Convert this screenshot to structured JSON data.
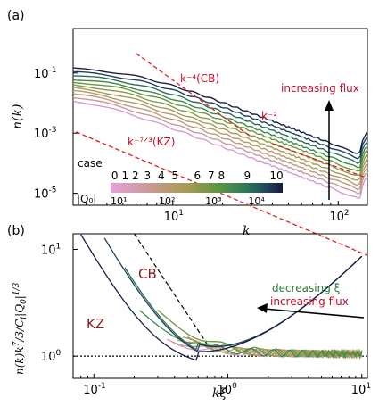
{
  "chart_data": [
    {
      "panel_label": "(a)",
      "type": "line",
      "scale": "log-log",
      "xlabel": "k",
      "ylabel": "n(k)",
      "xlim": [
        2.5,
        150
      ],
      "ylim": [
        4e-06,
        3
      ],
      "xticks": [
        {
          "v": 10,
          "label": "10^1"
        },
        {
          "v": 100,
          "label": "10^2"
        }
      ],
      "yticks": [
        {
          "v": 0.1,
          "label": "10^-1"
        },
        {
          "v": 0.001,
          "label": "10^-3"
        },
        {
          "v": 1e-05,
          "label": "10^-5"
        }
      ],
      "series_colors": [
        "#d89ad0",
        "#c99898",
        "#c0997f",
        "#b39a6a",
        "#a89a56",
        "#8a9a48",
        "#6a9840",
        "#3f8a4a",
        "#2a6e5a",
        "#20405a",
        "#1a1f48"
      ],
      "series": [
        {
          "amp": 0.0015,
          "lowdip": 0.0,
          "late": 0.0
        },
        {
          "amp": 0.0022,
          "lowdip": 0.0,
          "late": 0.0
        },
        {
          "amp": 0.0031,
          "lowdip": 0.0,
          "late": 0.0
        },
        {
          "amp": 0.0043,
          "lowdip": 0.0,
          "late": 0.0
        },
        {
          "amp": 0.006,
          "lowdip": 0.0,
          "late": 0.0
        },
        {
          "amp": 0.0084,
          "lowdip": 0.0,
          "late": 0.0
        },
        {
          "amp": 0.0118,
          "lowdip": 0.0,
          "late": 0.0
        },
        {
          "amp": 0.016,
          "lowdip": 0.0,
          "late": 0.0
        },
        {
          "amp": 0.023,
          "lowdip": 0.0,
          "late": 0.0
        },
        {
          "amp": 0.033,
          "lowdip": 0.0,
          "late": 0.0
        },
        {
          "amp": 0.047,
          "lowdip": 0.0,
          "late": 0.0
        }
      ],
      "ref_lines": [
        {
          "label": "k^-4 (CB)",
          "slope": -4,
          "x": [
            6,
            30
          ],
          "y0": 0.45
        },
        {
          "label": "k^-2",
          "slope": -2,
          "x": [
            40,
            150
          ],
          "y0": 0.00045
        },
        {
          "label": "k^-7/3 (KZ)",
          "slope": -2.3333,
          "x": [
            2.6,
            150
          ],
          "y0": 0.0011
        }
      ],
      "annotations": {
        "cb": "k⁻⁴(CB)",
        "k2": "k⁻²",
        "kz": "k⁻⁷ᐟ³(KZ)",
        "flux": "increasing flux"
      },
      "colorbar": {
        "title": "case",
        "case_labels": [
          "0",
          "1",
          "2",
          "3",
          "4",
          "5",
          "6",
          "7",
          "8",
          "9",
          "10"
        ],
        "q_label": "|Q₀|",
        "q_ticks": [
          "10¹",
          "10²",
          "10³",
          "10⁴"
        ]
      }
    },
    {
      "panel_label": "(b)",
      "type": "line",
      "scale": "log-log",
      "xlabel": "kξ",
      "ylabel": "n(k)k^{7/3}/C_i|Q_0|^{1/3}",
      "xlim": [
        0.07,
        11
      ],
      "ylim": [
        0.62,
        14
      ],
      "xticks": [
        {
          "v": 0.1,
          "label": "10^-1"
        },
        {
          "v": 1,
          "label": "10^0"
        },
        {
          "v": 10,
          "label": "10^1"
        }
      ],
      "yticks": [
        {
          "v": 1,
          "label": "10^0"
        },
        {
          "v": 10,
          "label": "10^1"
        }
      ],
      "annotations": {
        "cb": "CB",
        "kz": "KZ",
        "dec_xi": "decreasing ξ",
        "flux": "increasing flux"
      }
    }
  ]
}
